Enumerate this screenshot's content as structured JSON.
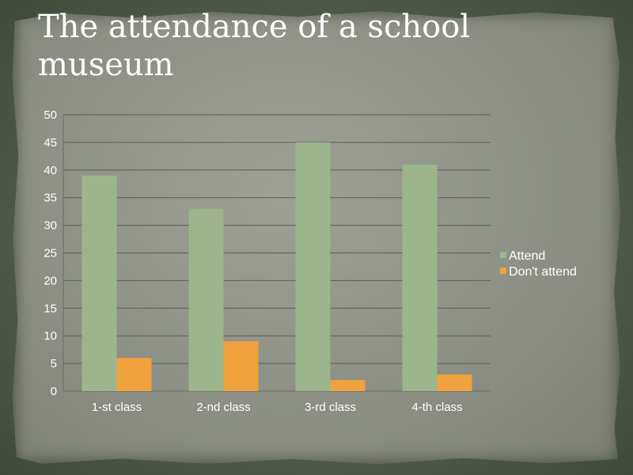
{
  "slide": {
    "title": "The attendance of a school museum"
  },
  "colors": {
    "attend": "#9cb58d",
    "dont_attend": "#f0a23e",
    "gridline": "#5c5c5c",
    "text": "#ffffff"
  },
  "chart_data": {
    "type": "bar",
    "title": "The attendance of a school museum",
    "categories": [
      "1-st class",
      "2-nd class",
      "3-rd class",
      "4-th class"
    ],
    "series": [
      {
        "name": "Attend",
        "values": [
          39,
          33,
          45,
          41
        ]
      },
      {
        "name": "Don't attend",
        "values": [
          6,
          9,
          2,
          3
        ]
      }
    ],
    "ylim": [
      0,
      50
    ],
    "yticks": [
      0,
      5,
      10,
      15,
      20,
      25,
      30,
      35,
      40,
      45,
      50
    ],
    "grid": true,
    "legend": "right"
  }
}
